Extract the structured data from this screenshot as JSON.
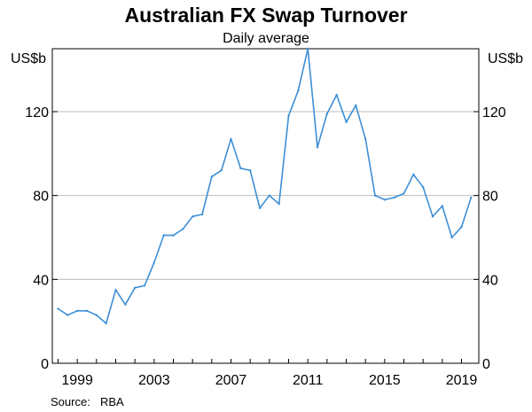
{
  "chart_data": {
    "type": "line",
    "title": "Australian FX Swap Turnover",
    "subtitle": "Daily average",
    "y_unit_left": "US$b",
    "y_unit_right": "US$b",
    "ylim": [
      0,
      150
    ],
    "xlim": [
      1997.7,
      2019.9
    ],
    "y_ticks": [
      0,
      40,
      80,
      120
    ],
    "x_ticks": [
      1999,
      2003,
      2007,
      2011,
      2015,
      2019
    ],
    "grid": "horizontal",
    "line_color": "#3d8fd6",
    "source_label": "Source:",
    "source": "RBA",
    "series": [
      {
        "x": [
          1998.0,
          1998.5,
          1999.0,
          1999.5,
          2000.0,
          2000.5,
          2001.0,
          2001.5,
          2002.0,
          2002.5,
          2003.0,
          2003.5,
          2004.0,
          2004.5,
          2005.0,
          2005.5,
          2006.0,
          2006.5,
          2007.0,
          2007.5,
          2008.0,
          2008.5,
          2009.0,
          2009.5,
          2010.0,
          2010.5,
          2011.0,
          2011.5,
          2012.0,
          2012.5,
          2013.0,
          2013.5,
          2014.0,
          2014.5,
          2015.0,
          2015.5,
          2016.0,
          2016.5,
          2017.0,
          2017.5,
          2018.0,
          2018.5,
          2019.0,
          2019.5
        ],
        "values": [
          26,
          23,
          25,
          25,
          23,
          19,
          35,
          28,
          36,
          37,
          48,
          61,
          61,
          64,
          70,
          71,
          89,
          92,
          107,
          93,
          92,
          74,
          80,
          76,
          118,
          130,
          150,
          103,
          119,
          128,
          115,
          123,
          107,
          80,
          78,
          79,
          81,
          90,
          84,
          70,
          75,
          60,
          65,
          79
        ]
      }
    ]
  }
}
